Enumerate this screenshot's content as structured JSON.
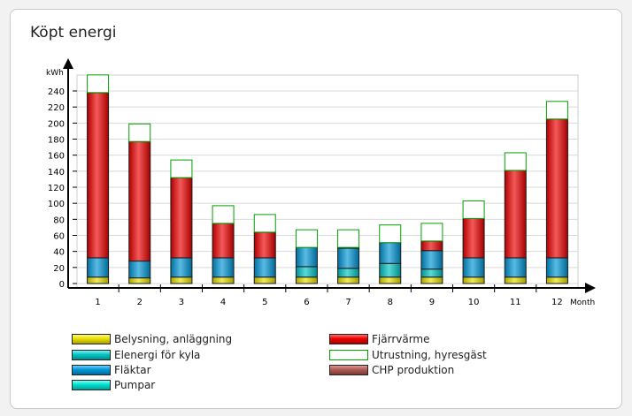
{
  "card": {
    "title": "Köpt energi"
  },
  "chart_data": {
    "type": "bar",
    "stacked": true,
    "ylabel": "kWh",
    "xlabel": "Month",
    "ylim": [
      0,
      260
    ],
    "y_ticks": [
      0,
      20,
      40,
      60,
      80,
      100,
      120,
      140,
      160,
      180,
      200,
      220,
      240
    ],
    "grid": true,
    "categories": [
      "1",
      "2",
      "3",
      "4",
      "5",
      "6",
      "7",
      "8",
      "9",
      "10",
      "11",
      "12"
    ],
    "series": [
      {
        "name": "Belysning, anläggning",
        "color": "#e8e000",
        "values": [
          8,
          7,
          8,
          8,
          8,
          8,
          8,
          8,
          8,
          8,
          8,
          8
        ]
      },
      {
        "name": "Elenergi för kyla",
        "color": "#00c4c4",
        "values": [
          0,
          0,
          0,
          0,
          0,
          13,
          11,
          17,
          10,
          0,
          0,
          0
        ]
      },
      {
        "name": "Fläktar",
        "color": "#0096d6",
        "values": [
          24,
          21,
          24,
          24,
          24,
          24,
          25,
          26,
          23,
          24,
          24,
          24
        ]
      },
      {
        "name": "Pumpar",
        "color": "#00e0d0",
        "values": [
          0,
          0,
          0,
          0,
          0,
          0,
          0,
          0,
          0,
          0,
          0,
          0
        ]
      },
      {
        "name": "Fjärrvärme",
        "color": "#ee0000",
        "values": [
          206,
          149,
          100,
          43,
          32,
          0,
          1,
          0,
          12,
          49,
          109,
          173
        ]
      },
      {
        "name": "Utrustning, hyresgäst",
        "color": "#ffffff",
        "border": "#00a000",
        "values": [
          22,
          22,
          22,
          22,
          22,
          22,
          22,
          22,
          22,
          22,
          22,
          22
        ]
      },
      {
        "name": "CHP produktion",
        "color": "#b05a55",
        "values": [
          0,
          0,
          0,
          0,
          0,
          0,
          0,
          0,
          0,
          0,
          0,
          0
        ]
      }
    ]
  }
}
